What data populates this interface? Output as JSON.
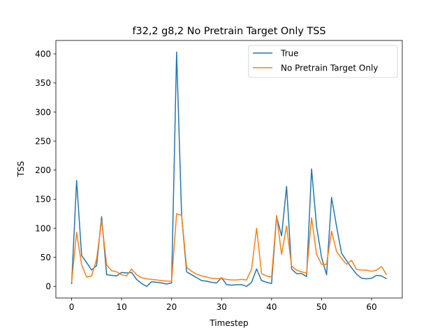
{
  "chart_data": {
    "type": "line",
    "title": "f32,2 g8,2 No Pretrain Target Only TSS",
    "xlabel": "Timestep",
    "ylabel": "TSS",
    "xlim": [
      -3.15,
      66.15
    ],
    "ylim": [
      -20,
      423
    ],
    "xticks": [
      0,
      10,
      20,
      30,
      40,
      50,
      60
    ],
    "yticks": [
      0,
      50,
      100,
      150,
      200,
      250,
      300,
      350,
      400
    ],
    "grid": false,
    "legend_position": "top-right",
    "series": [
      {
        "name": "True",
        "color": "#1f77b4",
        "values": [
          4,
          182,
          53,
          41,
          28,
          36,
          120,
          20,
          19,
          18,
          24,
          23,
          24,
          12,
          5,
          0,
          8,
          7,
          6,
          4,
          6,
          403,
          122,
          25,
          20,
          15,
          10,
          9,
          7,
          6,
          15,
          3,
          2,
          3,
          3,
          0,
          7,
          30,
          10,
          7,
          5,
          120,
          87,
          172,
          30,
          22,
          22,
          17,
          202,
          103,
          50,
          20,
          153,
          103,
          57,
          44,
          32,
          21,
          14,
          13,
          14,
          19,
          18,
          13
        ]
      },
      {
        "name": "No Pretrain Target Only",
        "color": "#ff7f0e",
        "values": [
          7,
          93,
          37,
          16,
          18,
          47,
          113,
          37,
          27,
          25,
          20,
          18,
          30,
          20,
          15,
          13,
          12,
          11,
          10,
          9,
          9,
          125,
          122,
          33,
          26,
          21,
          18,
          16,
          14,
          13,
          14,
          12,
          11,
          11,
          12,
          11,
          30,
          100,
          22,
          18,
          16,
          122,
          55,
          104,
          35,
          28,
          25,
          23,
          118,
          55,
          38,
          38,
          95,
          60,
          48,
          38,
          45,
          29,
          28,
          28,
          26,
          28,
          34,
          20
        ]
      }
    ]
  }
}
